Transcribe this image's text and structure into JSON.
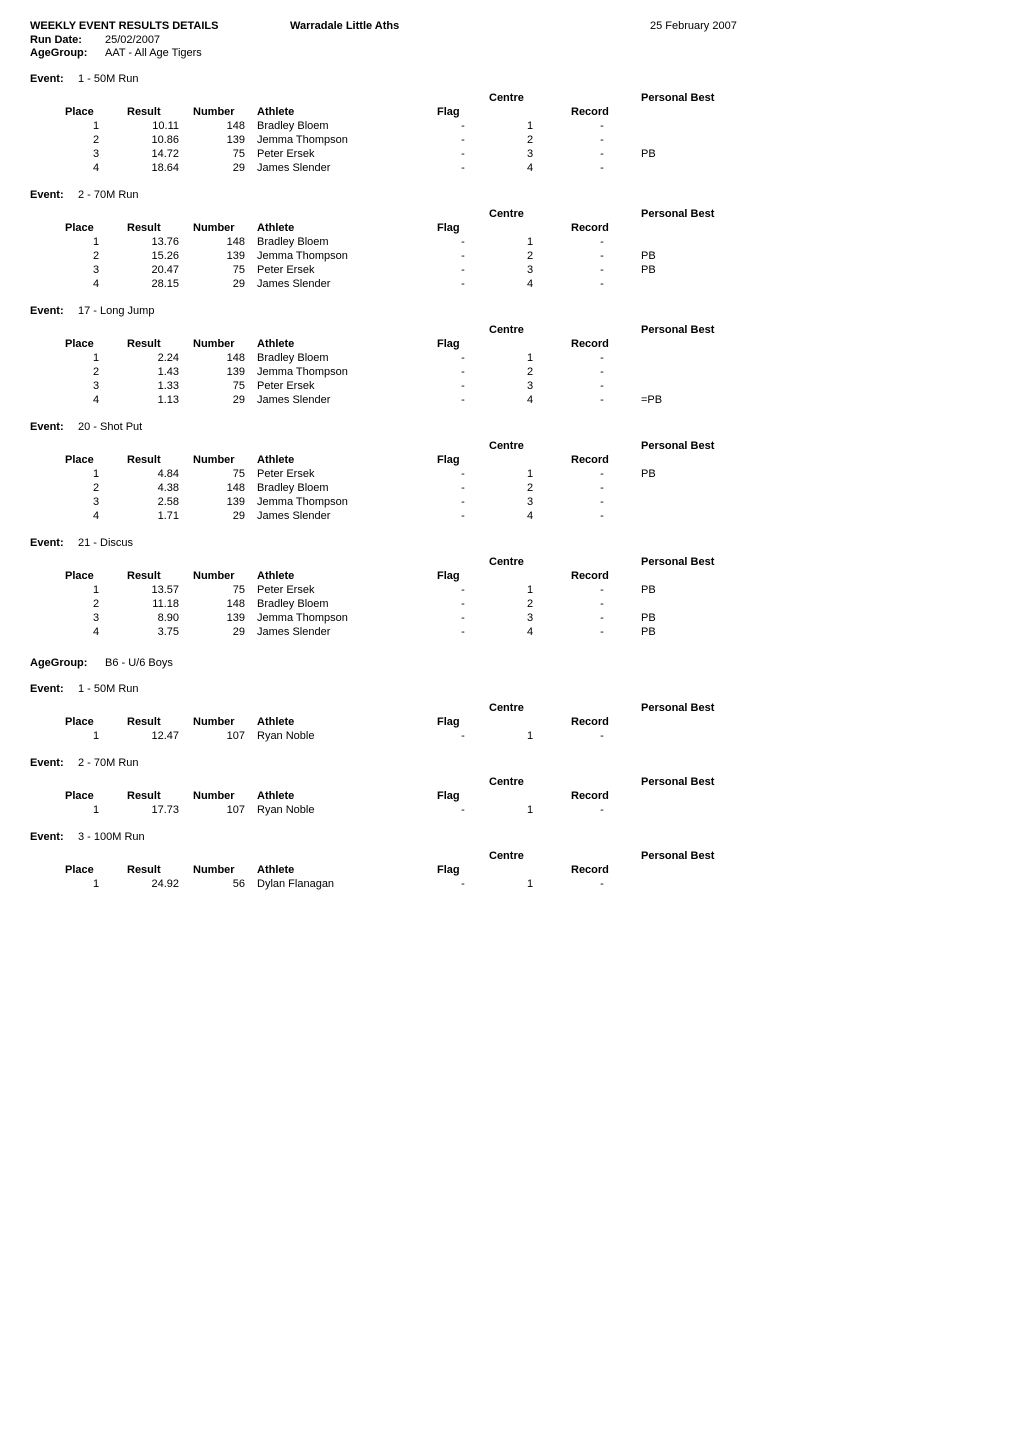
{
  "header": {
    "title": "WEEKLY EVENT RESULTS DETAILS",
    "subtitle": "Warradale Little Aths",
    "date": "25 February 2007",
    "run_date_label": "Run Date:",
    "run_date_value": "25/02/2007",
    "agegroup_label": "AgeGroup:",
    "agegroup_value": "AAT - All Age Tigers"
  },
  "labels": {
    "event": "Event:",
    "agegroup": "AgeGroup:",
    "place": "Place",
    "result": "Result",
    "number": "Number",
    "athlete": "Athlete",
    "flag": "Flag",
    "centre": "Centre",
    "record": "Record",
    "personal_best": "Personal Best"
  },
  "sections": [
    {
      "type": "event",
      "name": "1 - 50M Run",
      "rows": [
        {
          "place": "1",
          "result": "10.11",
          "number": "148",
          "athlete": "Bradley Bloem",
          "flag": "-",
          "centre": "1",
          "record": "-",
          "pb": ""
        },
        {
          "place": "2",
          "result": "10.86",
          "number": "139",
          "athlete": "Jemma Thompson",
          "flag": "-",
          "centre": "2",
          "record": "-",
          "pb": ""
        },
        {
          "place": "3",
          "result": "14.72",
          "number": "75",
          "athlete": "Peter Ersek",
          "flag": "-",
          "centre": "3",
          "record": "-",
          "pb": "PB"
        },
        {
          "place": "4",
          "result": "18.64",
          "number": "29",
          "athlete": "James Slender",
          "flag": "-",
          "centre": "4",
          "record": "-",
          "pb": ""
        }
      ]
    },
    {
      "type": "event",
      "name": "2 - 70M Run",
      "rows": [
        {
          "place": "1",
          "result": "13.76",
          "number": "148",
          "athlete": "Bradley Bloem",
          "flag": "-",
          "centre": "1",
          "record": "-",
          "pb": ""
        },
        {
          "place": "2",
          "result": "15.26",
          "number": "139",
          "athlete": "Jemma Thompson",
          "flag": "-",
          "centre": "2",
          "record": "-",
          "pb": "PB"
        },
        {
          "place": "3",
          "result": "20.47",
          "number": "75",
          "athlete": "Peter Ersek",
          "flag": "-",
          "centre": "3",
          "record": "-",
          "pb": "PB"
        },
        {
          "place": "4",
          "result": "28.15",
          "number": "29",
          "athlete": "James Slender",
          "flag": "-",
          "centre": "4",
          "record": "-",
          "pb": ""
        }
      ]
    },
    {
      "type": "event",
      "name": "17 - Long Jump",
      "rows": [
        {
          "place": "1",
          "result": "2.24",
          "number": "148",
          "athlete": "Bradley Bloem",
          "flag": "-",
          "centre": "1",
          "record": "-",
          "pb": ""
        },
        {
          "place": "2",
          "result": "1.43",
          "number": "139",
          "athlete": "Jemma Thompson",
          "flag": "-",
          "centre": "2",
          "record": "-",
          "pb": ""
        },
        {
          "place": "3",
          "result": "1.33",
          "number": "75",
          "athlete": "Peter Ersek",
          "flag": "-",
          "centre": "3",
          "record": "-",
          "pb": ""
        },
        {
          "place": "4",
          "result": "1.13",
          "number": "29",
          "athlete": "James Slender",
          "flag": "-",
          "centre": "4",
          "record": "-",
          "pb": "=PB"
        }
      ]
    },
    {
      "type": "event",
      "name": "20 - Shot Put",
      "rows": [
        {
          "place": "1",
          "result": "4.84",
          "number": "75",
          "athlete": "Peter Ersek",
          "flag": "-",
          "centre": "1",
          "record": "-",
          "pb": "PB"
        },
        {
          "place": "2",
          "result": "4.38",
          "number": "148",
          "athlete": "Bradley Bloem",
          "flag": "-",
          "centre": "2",
          "record": "-",
          "pb": ""
        },
        {
          "place": "3",
          "result": "2.58",
          "number": "139",
          "athlete": "Jemma Thompson",
          "flag": "-",
          "centre": "3",
          "record": "-",
          "pb": ""
        },
        {
          "place": "4",
          "result": "1.71",
          "number": "29",
          "athlete": "James Slender",
          "flag": "-",
          "centre": "4",
          "record": "-",
          "pb": ""
        }
      ]
    },
    {
      "type": "event",
      "name": "21 - Discus",
      "rows": [
        {
          "place": "1",
          "result": "13.57",
          "number": "75",
          "athlete": "Peter Ersek",
          "flag": "-",
          "centre": "1",
          "record": "-",
          "pb": "PB"
        },
        {
          "place": "2",
          "result": "11.18",
          "number": "148",
          "athlete": "Bradley Bloem",
          "flag": "-",
          "centre": "2",
          "record": "-",
          "pb": ""
        },
        {
          "place": "3",
          "result": "8.90",
          "number": "139",
          "athlete": "Jemma Thompson",
          "flag": "-",
          "centre": "3",
          "record": "-",
          "pb": "PB"
        },
        {
          "place": "4",
          "result": "3.75",
          "number": "29",
          "athlete": "James Slender",
          "flag": "-",
          "centre": "4",
          "record": "-",
          "pb": "PB"
        }
      ]
    },
    {
      "type": "agegroup",
      "name": "B6 - U/6 Boys"
    },
    {
      "type": "event",
      "name": "1 - 50M Run",
      "rows": [
        {
          "place": "1",
          "result": "12.47",
          "number": "107",
          "athlete": "Ryan Noble",
          "flag": "-",
          "centre": "1",
          "record": "-",
          "pb": ""
        }
      ]
    },
    {
      "type": "event",
      "name": "2 - 70M Run",
      "rows": [
        {
          "place": "1",
          "result": "17.73",
          "number": "107",
          "athlete": "Ryan Noble",
          "flag": "-",
          "centre": "1",
          "record": "-",
          "pb": ""
        }
      ]
    },
    {
      "type": "event",
      "name": "3 - 100M Run",
      "rows": [
        {
          "place": "1",
          "result": "24.92",
          "number": "56",
          "athlete": "Dylan Flanagan",
          "flag": "-",
          "centre": "1",
          "record": "-",
          "pb": ""
        }
      ]
    }
  ]
}
